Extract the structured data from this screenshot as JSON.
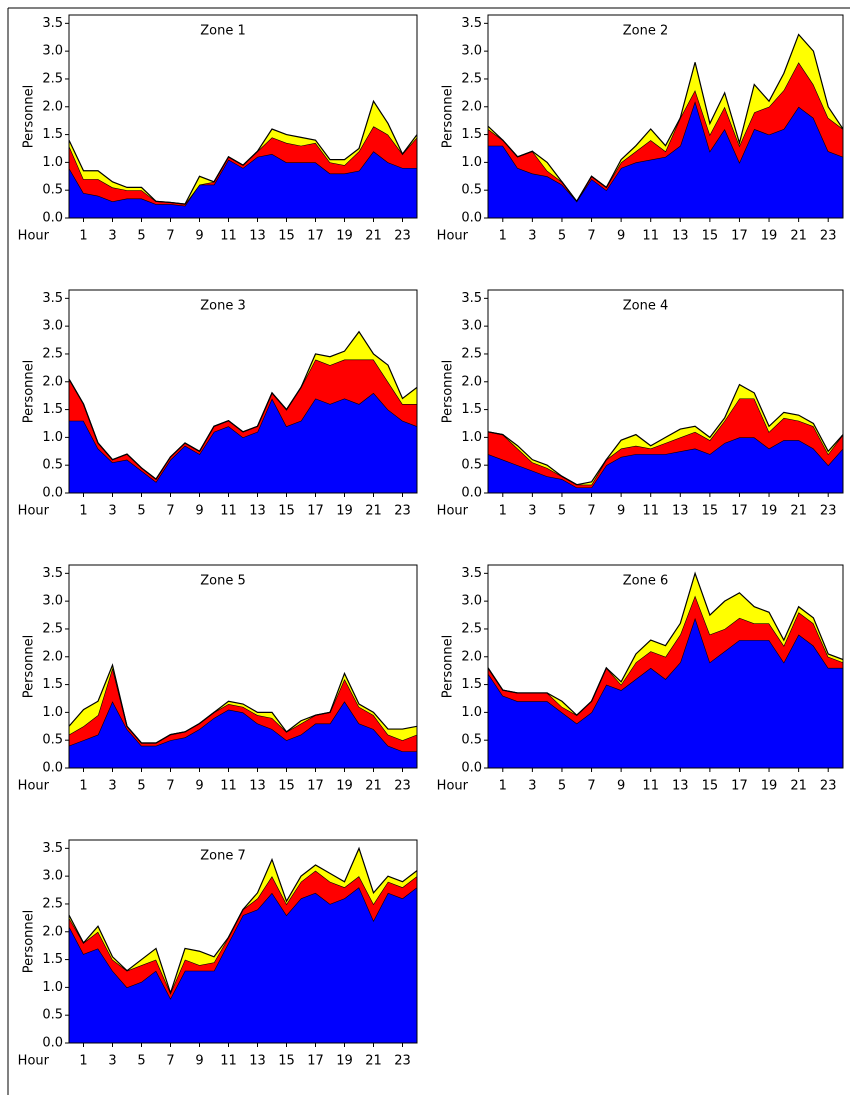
{
  "chart_data": [
    {
      "type": "area",
      "stacked": true,
      "title": "Zone 1",
      "xlabel": "Hour",
      "ylabel": "Personnel",
      "x": [
        0,
        1,
        2,
        3,
        4,
        5,
        6,
        7,
        8,
        9,
        10,
        11,
        12,
        13,
        14,
        15,
        16,
        17,
        18,
        19,
        20,
        21,
        22,
        23,
        24
      ],
      "xlim": [
        0,
        24
      ],
      "xticks": [
        1,
        3,
        5,
        7,
        9,
        11,
        13,
        15,
        17,
        19,
        21,
        23
      ],
      "ylim": [
        0,
        3.65
      ],
      "yticks": [
        {
          "value": 0,
          "label": "0.0"
        },
        0.5,
        {
          "value": 1,
          "label": "1.0"
        },
        1.5,
        {
          "value": 2,
          "label": "2.0"
        },
        2.5,
        {
          "value": 3,
          "label": "3.0"
        },
        3.5
      ],
      "series": [
        {
          "color": "#0000ff",
          "values": [
            0.9,
            0.45,
            0.4,
            0.3,
            0.35,
            0.35,
            0.25,
            0.25,
            0.22,
            0.6,
            0.6,
            1.05,
            0.9,
            1.1,
            1.15,
            1.0,
            1.0,
            1.0,
            0.8,
            0.8,
            0.85,
            1.2,
            1.0,
            0.9,
            0.9
          ]
        },
        {
          "color": "#ff0000",
          "values": [
            0.4,
            0.25,
            0.3,
            0.25,
            0.15,
            0.15,
            0.05,
            0.03,
            0.03,
            0,
            0.05,
            0.05,
            0.05,
            0.1,
            0.3,
            0.35,
            0.3,
            0.35,
            0.2,
            0.15,
            0.35,
            0.45,
            0.5,
            0.25,
            0.55
          ]
        },
        {
          "color": "#ffff00",
          "values": [
            0.1,
            0.15,
            0.15,
            0.1,
            0.05,
            0.05,
            0,
            0,
            0,
            0.15,
            0,
            0,
            0,
            0,
            0.15,
            0.15,
            0.15,
            0.05,
            0.05,
            0.1,
            0.05,
            0.45,
            0.2,
            0,
            0.05
          ]
        }
      ]
    },
    {
      "type": "area",
      "stacked": true,
      "title": "Zone 2",
      "xlabel": "Hour",
      "ylabel": "Personnel",
      "x": [
        0,
        1,
        2,
        3,
        4,
        5,
        6,
        7,
        8,
        9,
        10,
        11,
        12,
        13,
        14,
        15,
        16,
        17,
        18,
        19,
        20,
        21,
        22,
        23,
        24
      ],
      "xlim": [
        0,
        24
      ],
      "xticks": [
        1,
        3,
        5,
        7,
        9,
        11,
        13,
        15,
        17,
        19,
        21,
        23
      ],
      "ylim": [
        0,
        3.65
      ],
      "yticks": [
        {
          "value": 0,
          "label": "0.0"
        },
        0.5,
        {
          "value": 1,
          "label": "1.0"
        },
        1.5,
        {
          "value": 2,
          "label": "2.0"
        },
        2.5,
        {
          "value": 3,
          "label": "3.0"
        },
        3.5
      ],
      "series": [
        {
          "color": "#0000ff",
          "values": [
            1.3,
            1.3,
            0.9,
            0.8,
            0.75,
            0.6,
            0.3,
            0.7,
            0.5,
            0.9,
            1.0,
            1.05,
            1.1,
            1.3,
            2.1,
            1.2,
            1.6,
            1.0,
            1.6,
            1.5,
            1.6,
            2.0,
            1.8,
            1.2,
            1.1
          ]
        },
        {
          "color": "#ff0000",
          "values": [
            0.3,
            0.1,
            0.2,
            0.4,
            0.1,
            0.05,
            0,
            0.05,
            0.05,
            0.1,
            0.2,
            0.35,
            0.1,
            0.5,
            0.2,
            0.3,
            0.4,
            0.3,
            0.3,
            0.5,
            0.7,
            0.8,
            0.6,
            0.6,
            0.5
          ]
        },
        {
          "color": "#ffff00",
          "values": [
            0.05,
            0,
            0,
            0,
            0.15,
            0,
            0,
            0,
            0,
            0.05,
            0.1,
            0.2,
            0.1,
            0,
            0.5,
            0.2,
            0.25,
            0.05,
            0.5,
            0.1,
            0.3,
            0.5,
            0.6,
            0.2,
            0
          ]
        }
      ]
    },
    {
      "type": "area",
      "stacked": true,
      "title": "Zone 3",
      "xlabel": "Hour",
      "ylabel": "Personnel",
      "x": [
        0,
        1,
        2,
        3,
        4,
        5,
        6,
        7,
        8,
        9,
        10,
        11,
        12,
        13,
        14,
        15,
        16,
        17,
        18,
        19,
        20,
        21,
        22,
        23,
        24
      ],
      "xlim": [
        0,
        24
      ],
      "xticks": [
        1,
        3,
        5,
        7,
        9,
        11,
        13,
        15,
        17,
        19,
        21,
        23
      ],
      "ylim": [
        0,
        3.65
      ],
      "yticks": [
        {
          "value": 0,
          "label": "0.0"
        },
        0.5,
        {
          "value": 1,
          "label": "1.0"
        },
        1.5,
        {
          "value": 2,
          "label": "2.0"
        },
        2.5,
        {
          "value": 3,
          "label": "3.0"
        },
        3.5
      ],
      "series": [
        {
          "color": "#0000ff",
          "values": [
            1.3,
            1.3,
            0.8,
            0.55,
            0.6,
            0.4,
            0.2,
            0.6,
            0.85,
            0.7,
            1.1,
            1.2,
            1.0,
            1.1,
            1.7,
            1.2,
            1.3,
            1.7,
            1.6,
            1.7,
            1.6,
            1.8,
            1.5,
            1.3,
            1.2
          ]
        },
        {
          "color": "#ff0000",
          "values": [
            0.75,
            0.3,
            0.1,
            0.05,
            0.1,
            0.05,
            0.05,
            0.05,
            0.05,
            0.05,
            0.1,
            0.1,
            0.1,
            0.1,
            0.1,
            0.3,
            0.6,
            0.7,
            0.7,
            0.7,
            0.8,
            0.6,
            0.5,
            0.3,
            0.4
          ]
        },
        {
          "color": "#ffff00",
          "values": [
            0,
            0,
            0,
            0,
            0,
            0,
            0,
            0,
            0,
            0,
            0,
            0,
            0,
            0,
            0,
            0,
            0,
            0.1,
            0.15,
            0.15,
            0.5,
            0.1,
            0.3,
            0.1,
            0.3
          ]
        }
      ]
    },
    {
      "type": "area",
      "stacked": true,
      "title": "Zone 4",
      "xlabel": "Hour",
      "ylabel": "Personnel",
      "x": [
        0,
        1,
        2,
        3,
        4,
        5,
        6,
        7,
        8,
        9,
        10,
        11,
        12,
        13,
        14,
        15,
        16,
        17,
        18,
        19,
        20,
        21,
        22,
        23,
        24
      ],
      "xlim": [
        0,
        24
      ],
      "xticks": [
        1,
        3,
        5,
        7,
        9,
        11,
        13,
        15,
        17,
        19,
        21,
        23
      ],
      "ylim": [
        0,
        3.65
      ],
      "yticks": [
        {
          "value": 0,
          "label": "0.0"
        },
        0.5,
        {
          "value": 1,
          "label": "1.0"
        },
        1.5,
        {
          "value": 2,
          "label": "2.0"
        },
        2.5,
        {
          "value": 3,
          "label": "3.0"
        },
        3.5
      ],
      "series": [
        {
          "color": "#0000ff",
          "values": [
            0.7,
            0.6,
            0.5,
            0.4,
            0.3,
            0.25,
            0.1,
            0.1,
            0.5,
            0.65,
            0.7,
            0.7,
            0.7,
            0.75,
            0.8,
            0.7,
            0.9,
            1.0,
            1.0,
            0.8,
            0.95,
            0.95,
            0.8,
            0.5,
            0.8
          ]
        },
        {
          "color": "#ff0000",
          "values": [
            0.4,
            0.45,
            0.3,
            0.15,
            0.15,
            0.05,
            0.05,
            0.05,
            0.1,
            0.15,
            0.15,
            0.1,
            0.2,
            0.25,
            0.3,
            0.25,
            0.4,
            0.7,
            0.7,
            0.3,
            0.4,
            0.35,
            0.4,
            0.2,
            0.25
          ]
        },
        {
          "color": "#ffff00",
          "values": [
            0,
            0,
            0.05,
            0.05,
            0.05,
            0,
            0,
            0.05,
            0,
            0.15,
            0.2,
            0.05,
            0.1,
            0.15,
            0.1,
            0.05,
            0.05,
            0.25,
            0.1,
            0.1,
            0.1,
            0.1,
            0.05,
            0.05,
            0
          ]
        }
      ]
    },
    {
      "type": "area",
      "stacked": true,
      "title": "Zone 5",
      "xlabel": "Hour",
      "ylabel": "Personnel",
      "x": [
        0,
        1,
        2,
        3,
        4,
        5,
        6,
        7,
        8,
        9,
        10,
        11,
        12,
        13,
        14,
        15,
        16,
        17,
        18,
        19,
        20,
        21,
        22,
        23,
        24
      ],
      "xlim": [
        0,
        24
      ],
      "xticks": [
        1,
        3,
        5,
        7,
        9,
        11,
        13,
        15,
        17,
        19,
        21,
        23
      ],
      "ylim": [
        0,
        3.65
      ],
      "yticks": [
        {
          "value": 0,
          "label": "0.0"
        },
        0.5,
        {
          "value": 1,
          "label": "1.0"
        },
        1.5,
        {
          "value": 2,
          "label": "2.0"
        },
        2.5,
        {
          "value": 3,
          "label": "3.0"
        },
        3.5
      ],
      "series": [
        {
          "color": "#0000ff",
          "values": [
            0.4,
            0.5,
            0.6,
            1.2,
            0.7,
            0.4,
            0.4,
            0.5,
            0.55,
            0.7,
            0.9,
            1.05,
            1.0,
            0.8,
            0.7,
            0.5,
            0.6,
            0.8,
            0.8,
            1.2,
            0.8,
            0.7,
            0.4,
            0.3,
            0.3
          ]
        },
        {
          "color": "#ff0000",
          "values": [
            0.2,
            0.25,
            0.35,
            0.6,
            0.05,
            0.05,
            0.05,
            0.1,
            0.1,
            0.1,
            0.1,
            0.1,
            0.1,
            0.15,
            0.2,
            0.15,
            0.2,
            0.15,
            0.2,
            0.4,
            0.3,
            0.25,
            0.2,
            0.2,
            0.3
          ]
        },
        {
          "color": "#ffff00",
          "values": [
            0.15,
            0.3,
            0.25,
            0.05,
            0,
            0,
            0,
            0,
            0,
            0,
            0,
            0.05,
            0.05,
            0.05,
            0.1,
            0,
            0.05,
            0,
            0,
            0.1,
            0.05,
            0.05,
            0.1,
            0.2,
            0.15
          ]
        }
      ]
    },
    {
      "type": "area",
      "stacked": true,
      "title": "Zone 6",
      "xlabel": "Hour",
      "ylabel": "Personnel",
      "x": [
        0,
        1,
        2,
        3,
        4,
        5,
        6,
        7,
        8,
        9,
        10,
        11,
        12,
        13,
        14,
        15,
        16,
        17,
        18,
        19,
        20,
        21,
        22,
        23,
        24
      ],
      "xlim": [
        0,
        24
      ],
      "xticks": [
        1,
        3,
        5,
        7,
        9,
        11,
        13,
        15,
        17,
        19,
        21,
        23
      ],
      "ylim": [
        0,
        3.65
      ],
      "yticks": [
        {
          "value": 0,
          "label": "0.0"
        },
        0.5,
        {
          "value": 1,
          "label": "1.0"
        },
        1.5,
        {
          "value": 2,
          "label": "2.0"
        },
        2.5,
        {
          "value": 3,
          "label": "3.0"
        },
        3.5
      ],
      "series": [
        {
          "color": "#0000ff",
          "values": [
            1.7,
            1.3,
            1.2,
            1.2,
            1.2,
            1.0,
            0.8,
            1.0,
            1.5,
            1.4,
            1.6,
            1.8,
            1.6,
            1.9,
            2.7,
            1.9,
            2.1,
            2.3,
            2.3,
            2.3,
            1.9,
            2.4,
            2.2,
            1.8,
            1.8
          ]
        },
        {
          "color": "#ff0000",
          "values": [
            0.1,
            0.1,
            0.15,
            0.15,
            0.15,
            0.1,
            0.15,
            0.2,
            0.3,
            0.1,
            0.3,
            0.3,
            0.4,
            0.5,
            0.4,
            0.5,
            0.4,
            0.4,
            0.3,
            0.3,
            0.3,
            0.4,
            0.4,
            0.2,
            0.1
          ]
        },
        {
          "color": "#ffff00",
          "values": [
            0,
            0,
            0,
            0,
            0,
            0.1,
            0,
            0,
            0,
            0.05,
            0.15,
            0.2,
            0.2,
            0.2,
            0.4,
            0.35,
            0.5,
            0.45,
            0.3,
            0.2,
            0.1,
            0.1,
            0.1,
            0.05,
            0.05
          ]
        }
      ]
    },
    {
      "type": "area",
      "stacked": true,
      "title": "Zone 7",
      "xlabel": "Hour",
      "ylabel": "Personnel",
      "x": [
        0,
        1,
        2,
        3,
        4,
        5,
        6,
        7,
        8,
        9,
        10,
        11,
        12,
        13,
        14,
        15,
        16,
        17,
        18,
        19,
        20,
        21,
        22,
        23,
        24
      ],
      "xlim": [
        0,
        24
      ],
      "xticks": [
        1,
        3,
        5,
        7,
        9,
        11,
        13,
        15,
        17,
        19,
        21,
        23
      ],
      "ylim": [
        0,
        3.65
      ],
      "yticks": [
        {
          "value": 0,
          "label": "0.0"
        },
        0.5,
        {
          "value": 1,
          "label": "1.0"
        },
        1.5,
        {
          "value": 2,
          "label": "2.0"
        },
        2.5,
        {
          "value": 3,
          "label": "3.0"
        },
        3.5
      ],
      "series": [
        {
          "color": "#0000ff",
          "values": [
            2.1,
            1.6,
            1.7,
            1.3,
            1.0,
            1.1,
            1.3,
            0.8,
            1.3,
            1.3,
            1.3,
            1.8,
            2.3,
            2.4,
            2.7,
            2.3,
            2.6,
            2.7,
            2.5,
            2.6,
            2.8,
            2.2,
            2.7,
            2.6,
            2.8
          ]
        },
        {
          "color": "#ff0000",
          "values": [
            0.15,
            0.2,
            0.3,
            0.2,
            0.3,
            0.3,
            0.2,
            0.1,
            0.2,
            0.1,
            0.15,
            0.1,
            0.1,
            0.2,
            0.3,
            0.2,
            0.3,
            0.4,
            0.4,
            0.2,
            0.2,
            0.3,
            0.2,
            0.2,
            0.2
          ]
        },
        {
          "color": "#ffff00",
          "values": [
            0.05,
            0,
            0.1,
            0.05,
            0,
            0.1,
            0.2,
            0,
            0.2,
            0.25,
            0.1,
            0,
            0,
            0.1,
            0.3,
            0.05,
            0.1,
            0.1,
            0.15,
            0.1,
            0.5,
            0.2,
            0.1,
            0.1,
            0.1
          ]
        }
      ]
    }
  ]
}
